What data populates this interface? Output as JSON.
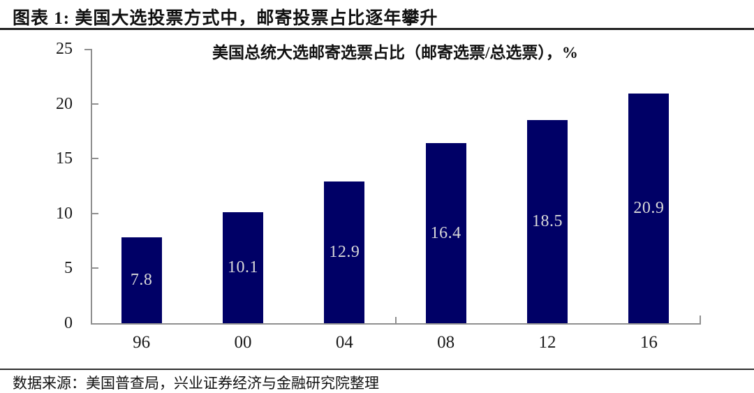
{
  "header": {
    "title": "图表 1: 美国大选投票方式中，邮寄投票占比逐年攀升"
  },
  "chart_data": {
    "type": "bar",
    "title": "美国总统大选邮寄选票占比（邮寄选票/总选票），%",
    "categories": [
      "96",
      "00",
      "04",
      "08",
      "12",
      "16"
    ],
    "values": [
      7.8,
      10.1,
      12.9,
      16.4,
      18.5,
      20.9
    ],
    "data_labels": [
      "7.8",
      "10.1",
      "12.9",
      "16.4",
      "18.5",
      "20.9"
    ],
    "xlabel": "",
    "ylabel": "",
    "ylim": [
      0,
      25
    ],
    "yticks": [
      0,
      5,
      10,
      15,
      20,
      25
    ],
    "grid": false,
    "legend": "none",
    "bar_color": "#000066",
    "bar_label_color": "#d9d9d9",
    "axis_color": "#8f8f8f"
  },
  "footer": {
    "source": "数据来源：美国普查局，兴业证券经济与金融研究院整理"
  }
}
